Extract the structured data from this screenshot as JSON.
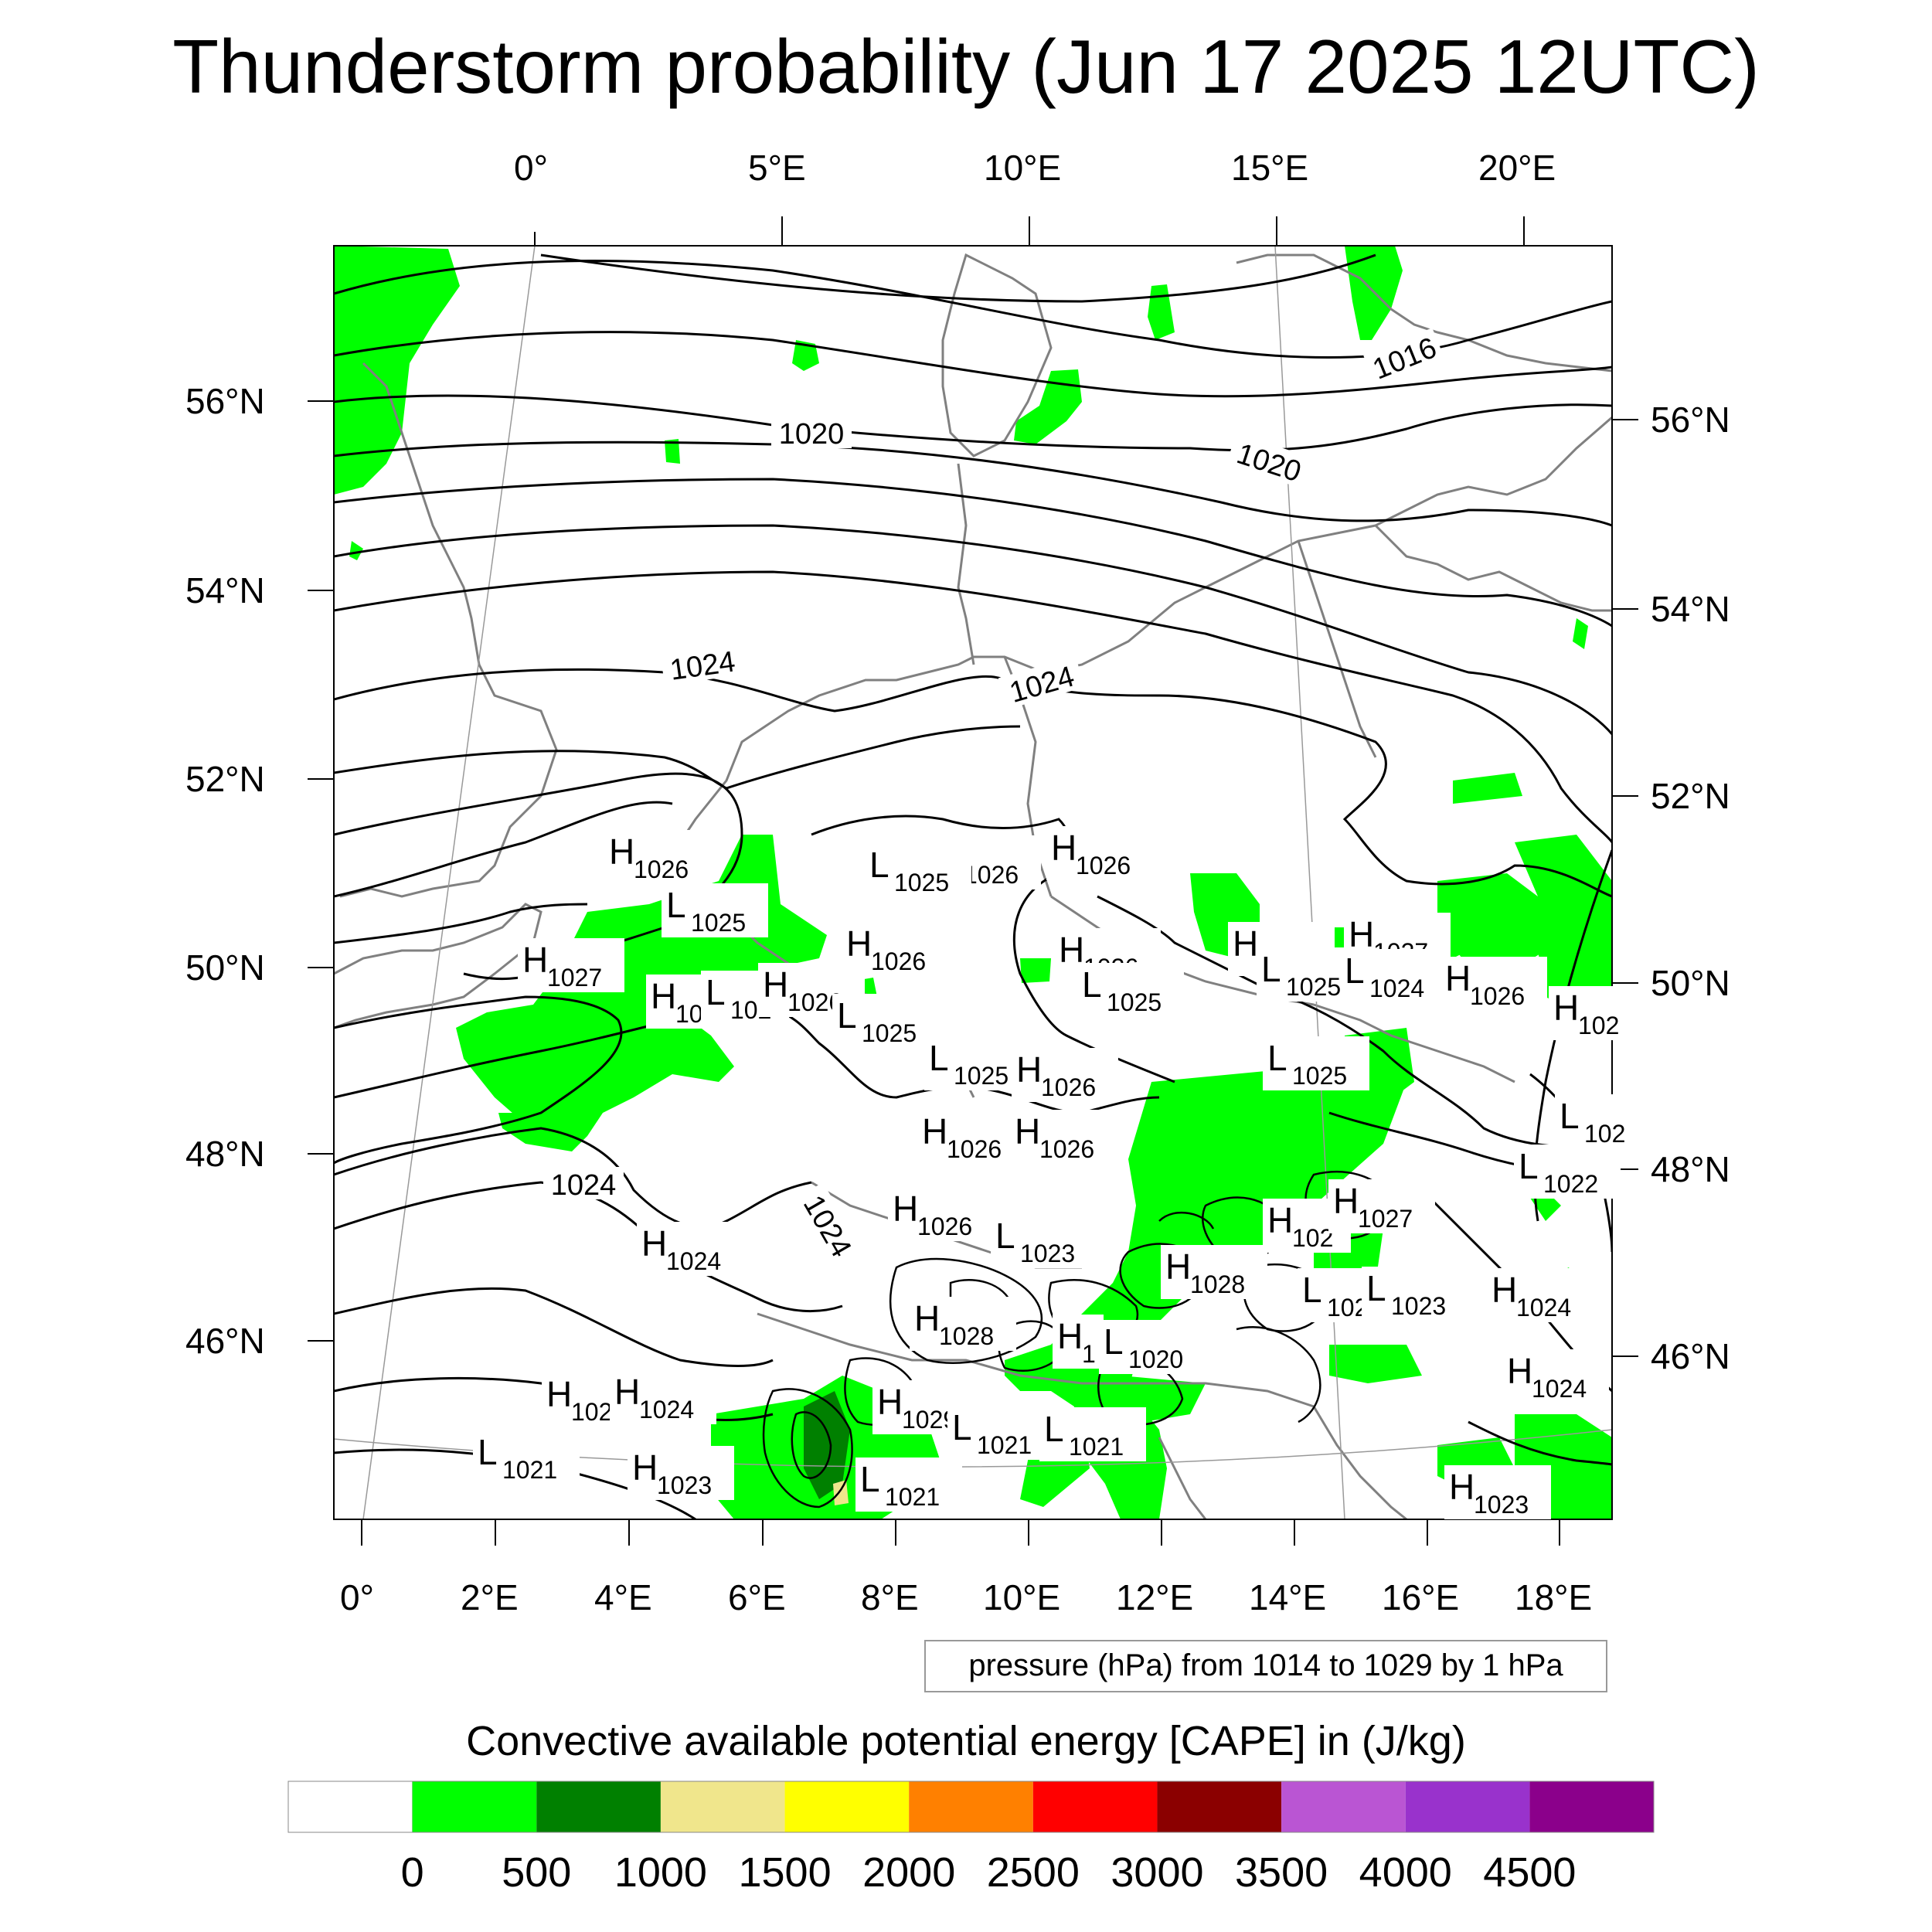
{
  "title": "Thunderstorm probability (Jun 17 2025 12UTC)",
  "top_lon_ticks": [
    "0°",
    "5°E",
    "10°E",
    "15°E",
    "20°E"
  ],
  "bottom_lon_ticks": [
    "0°",
    "2°E",
    "4°E",
    "6°E",
    "8°E",
    "10°E",
    "12°E",
    "14°E",
    "16°E",
    "18°E"
  ],
  "left_lat_ticks": [
    "56°N",
    "54°N",
    "52°N",
    "50°N",
    "48°N",
    "46°N"
  ],
  "right_lat_ticks": [
    "56°N",
    "54°N",
    "52°N",
    "50°N",
    "48°N",
    "46°N"
  ],
  "contour_labels": [
    "1016",
    "1020",
    "1020",
    "1024",
    "1024",
    "1024",
    "1024"
  ],
  "pressure_centers": [
    {
      "type": "H",
      "value": "1026"
    },
    {
      "type": "L",
      "value": "1025"
    },
    {
      "type": "H",
      "value": "1026"
    },
    {
      "type": "H",
      "value": "1026"
    },
    {
      "type": "L",
      "value": "1025"
    },
    {
      "type": "H",
      "value": "1027"
    },
    {
      "type": "H",
      "value": "1026"
    },
    {
      "type": "H",
      "value": "1026"
    },
    {
      "type": "H",
      "value": "1027"
    },
    {
      "type": "H",
      "value": "1027"
    },
    {
      "type": "L",
      "value": "1025"
    },
    {
      "type": "L",
      "value": "1024"
    },
    {
      "type": "H",
      "value": "1026"
    },
    {
      "type": "H",
      "value": "102"
    },
    {
      "type": "H",
      "value": "10"
    },
    {
      "type": "L",
      "value": "102"
    },
    {
      "type": "H",
      "value": "1026"
    },
    {
      "type": "L",
      "value": "1025"
    },
    {
      "type": "L",
      "value": "1025"
    },
    {
      "type": "H",
      "value": "1026"
    },
    {
      "type": "L",
      "value": "1025"
    },
    {
      "type": "L",
      "value": "1025"
    },
    {
      "type": "H",
      "value": "1026"
    },
    {
      "type": "H",
      "value": "1026"
    },
    {
      "type": "H",
      "value": "1026"
    },
    {
      "type": "L",
      "value": "1022"
    },
    {
      "type": "H",
      "value": "1026"
    },
    {
      "type": "H",
      "value": "1024"
    },
    {
      "type": "L",
      "value": "1023"
    },
    {
      "type": "H",
      "value": "1028"
    },
    {
      "type": "L",
      "value": "1023"
    },
    {
      "type": "L",
      "value": "1023"
    },
    {
      "type": "H",
      "value": "102"
    },
    {
      "type": "H",
      "value": "1027"
    },
    {
      "type": "H",
      "value": "1024"
    },
    {
      "type": "H",
      "value": "1028"
    },
    {
      "type": "H",
      "value": "1"
    },
    {
      "type": "L",
      "value": "1020"
    },
    {
      "type": "H",
      "value": "1024"
    },
    {
      "type": "H",
      "value": "102"
    },
    {
      "type": "H",
      "value": "1024"
    },
    {
      "type": "H",
      "value": "1029"
    },
    {
      "type": "L",
      "value": "1021"
    },
    {
      "type": "L",
      "value": "1021"
    },
    {
      "type": "L",
      "value": "1021"
    },
    {
      "type": "H",
      "value": "1023"
    },
    {
      "type": "L",
      "value": "1021"
    },
    {
      "type": "H",
      "value": "1023"
    },
    {
      "type": "L",
      "value": "102"
    }
  ],
  "contour_info": "pressure (hPa) from 1014 to 1029 by 1 hPa",
  "colorbar": {
    "title": "Convective available potential energy [CAPE] in (J/kg)",
    "colors": [
      "#ffffff",
      "#00ff00",
      "#008000",
      "#f0e68c",
      "#ffff00",
      "#ff8000",
      "#ff0000",
      "#8b0000",
      "#ba55d3",
      "#9932cc",
      "#8b008b"
    ],
    "tick_labels": [
      "0",
      "500",
      "1000",
      "1500",
      "2000",
      "2500",
      "3000",
      "3500",
      "4000",
      "4500"
    ]
  }
}
